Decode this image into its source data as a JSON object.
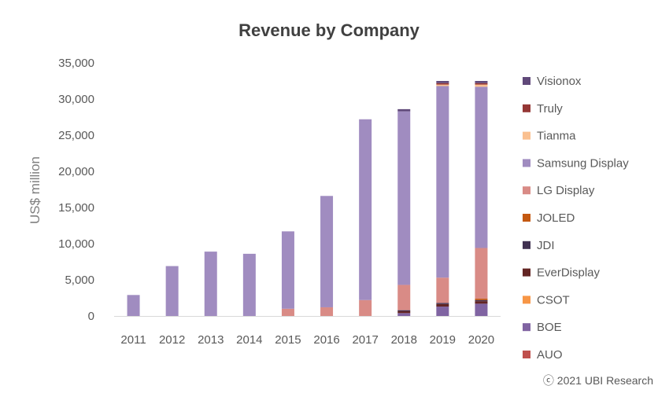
{
  "chart_data": {
    "type": "bar",
    "stacked": true,
    "title": "Revenue by Company",
    "ylabel": "US$ million",
    "xlabel": "",
    "ylim": [
      0,
      35000
    ],
    "yticks": [
      0,
      5000,
      10000,
      15000,
      20000,
      25000,
      30000,
      35000
    ],
    "ytick_labels": [
      "0",
      "5,000",
      "10,000",
      "15,000",
      "20,000",
      "25,000",
      "30,000",
      "35,000"
    ],
    "categories": [
      "2011",
      "2012",
      "2013",
      "2014",
      "2015",
      "2016",
      "2017",
      "2018",
      "2019",
      "2020"
    ],
    "grid": false,
    "legend_position": "right",
    "series": [
      {
        "name": "AUO",
        "color": "#c0504d",
        "values": [
          0,
          0,
          0,
          0,
          0,
          0,
          0,
          0,
          0,
          0
        ]
      },
      {
        "name": "BOE",
        "color": "#8064a2",
        "values": [
          0,
          0,
          0,
          0,
          0,
          0,
          0,
          400,
          1300,
          1700
        ]
      },
      {
        "name": "CSOT",
        "color": "#f79646",
        "values": [
          0,
          0,
          0,
          0,
          0,
          0,
          0,
          0,
          0,
          0
        ]
      },
      {
        "name": "EverDisplay",
        "color": "#632523",
        "values": [
          0,
          0,
          0,
          0,
          0,
          0,
          0,
          250,
          350,
          350
        ]
      },
      {
        "name": "JDI",
        "color": "#403151",
        "values": [
          0,
          0,
          0,
          0,
          0,
          0,
          0,
          150,
          150,
          150
        ]
      },
      {
        "name": "JOLED",
        "color": "#c45911",
        "values": [
          0,
          0,
          0,
          0,
          0,
          0,
          0,
          0,
          0,
          200
        ]
      },
      {
        "name": "LG Display",
        "color": "#d98b86",
        "values": [
          0,
          0,
          0,
          0,
          1000,
          1200,
          2200,
          3500,
          3500,
          7000
        ]
      },
      {
        "name": "Samsung Display",
        "color": "#a08cc0",
        "values": [
          2900,
          6900,
          8900,
          8600,
          10700,
          15400,
          25000,
          24000,
          26500,
          22300
        ]
      },
      {
        "name": "Tianma",
        "color": "#fac090",
        "values": [
          0,
          0,
          0,
          0,
          0,
          0,
          0,
          0,
          200,
          300
        ]
      },
      {
        "name": "Truly",
        "color": "#953735",
        "values": [
          0,
          0,
          0,
          0,
          0,
          0,
          0,
          0,
          200,
          200
        ]
      },
      {
        "name": "Visionox",
        "color": "#60497a",
        "values": [
          0,
          0,
          0,
          0,
          0,
          0,
          0,
          300,
          300,
          300
        ]
      }
    ],
    "legend_order": [
      "Visionox",
      "Truly",
      "Tianma",
      "Samsung Display",
      "LG Display",
      "JOLED",
      "JDI",
      "EverDisplay",
      "CSOT",
      "BOE",
      "AUO"
    ]
  },
  "credit": "ⓒ 2021 UBI Research"
}
